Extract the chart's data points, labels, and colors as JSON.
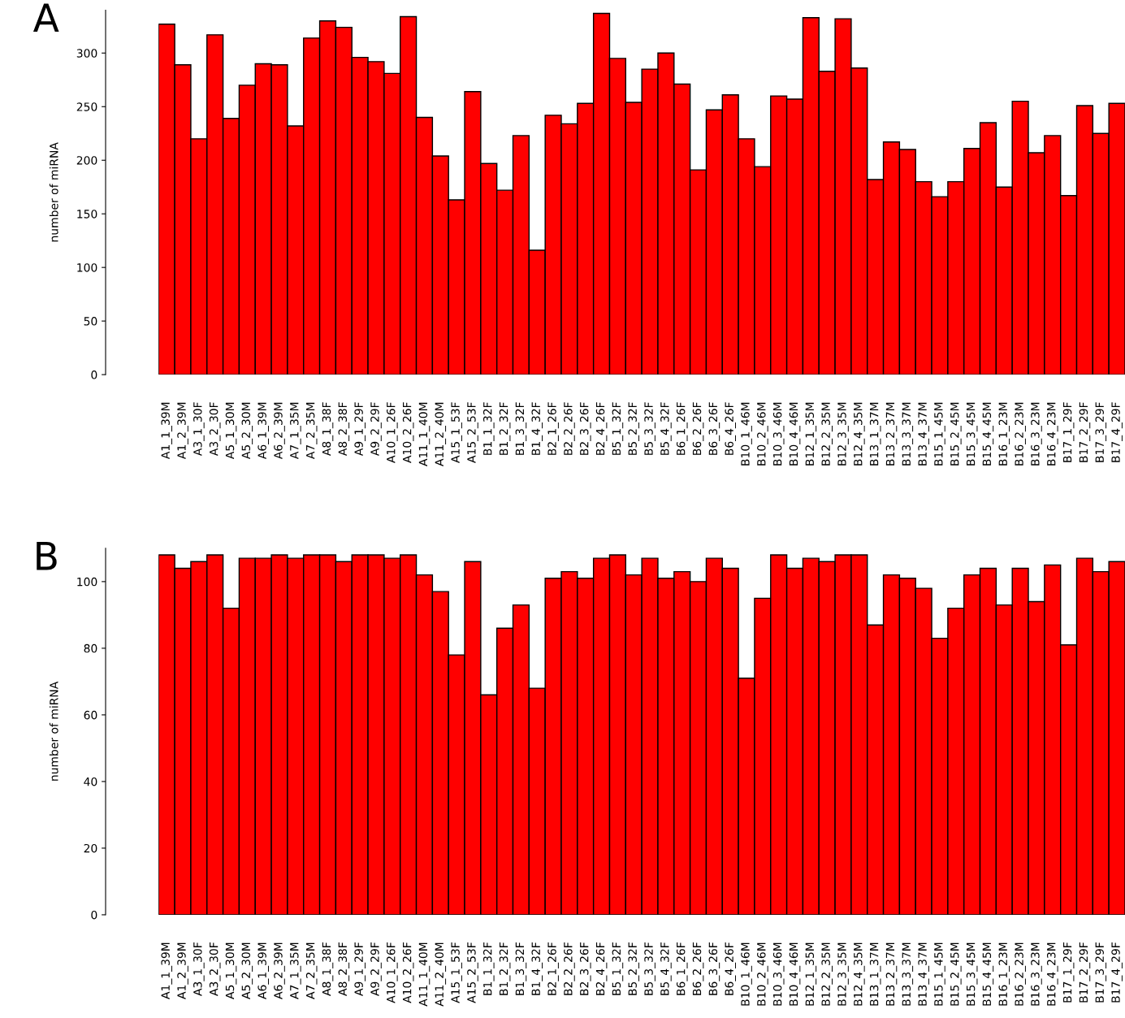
{
  "chart_data": [
    {
      "type": "bar",
      "title": "A",
      "ylabel": "number of miRNA",
      "categories": [
        "A1_1_39M",
        "A1_2_39M",
        "A3_1_30F",
        "A3_2_30F",
        "A5_1_30M",
        "A5_2_30M",
        "A6_1_39M",
        "A6_2_39M",
        "A7_1_35M",
        "A7_2_35M",
        "A8_1_38F",
        "A8_2_38F",
        "A9_1_29F",
        "A9_2_29F",
        "A10_1_26F",
        "A10_2_26F",
        "A11_1_40M",
        "A11_2_40M",
        "A15_1_53F",
        "A15_2_53F",
        "B1_1_32F",
        "B1_2_32F",
        "B1_3_32F",
        "B1_4_32F",
        "B2_1_26F",
        "B2_2_26F",
        "B2_3_26F",
        "B2_4_26F",
        "B5_1_32F",
        "B5_2_32F",
        "B5_3_32F",
        "B5_4_32F",
        "B6_1_26F",
        "B6_2_26F",
        "B6_3_26F",
        "B6_4_26F",
        "B10_1_46M",
        "B10_2_46M",
        "B10_3_46M",
        "B10_4_46M",
        "B12_1_35M",
        "B12_2_35M",
        "B12_3_35M",
        "B12_4_35M",
        "B13_1_37M",
        "B13_2_37M",
        "B13_3_37M",
        "B13_4_37M",
        "B15_1_45M",
        "B15_2_45M",
        "B15_3_45M",
        "B15_4_45M",
        "B16_1_23M",
        "B16_2_23M",
        "B16_3_23M",
        "B16_4_23M",
        "B17_1_29F",
        "B17_2_29F",
        "B17_3_29F",
        "B17_4_29F"
      ],
      "values": [
        327,
        289,
        220,
        317,
        239,
        270,
        290,
        289,
        232,
        314,
        330,
        324,
        296,
        292,
        281,
        334,
        240,
        204,
        163,
        264,
        197,
        172,
        223,
        116,
        242,
        234,
        253,
        337,
        295,
        254,
        285,
        300,
        271,
        191,
        247,
        261,
        220,
        194,
        260,
        257,
        333,
        283,
        332,
        286,
        182,
        217,
        210,
        180,
        166,
        180,
        211,
        235,
        175,
        255,
        207,
        223,
        167,
        251,
        225,
        253
      ],
      "color": "#ff0000",
      "ylim": [
        0,
        340
      ],
      "yticks": [
        0,
        50,
        100,
        150,
        200,
        250,
        300
      ],
      "grid": false,
      "legend": false
    },
    {
      "type": "bar",
      "title": "B",
      "ylabel": "number of miRNA",
      "categories": [
        "A1_1_39M",
        "A1_2_39M",
        "A3_1_30F",
        "A3_2_30F",
        "A5_1_30M",
        "A5_2_30M",
        "A6_1_39M",
        "A6_2_39M",
        "A7_1_35M",
        "A7_2_35M",
        "A8_1_38F",
        "A8_2_38F",
        "A9_1_29F",
        "A9_2_29F",
        "A10_1_26F",
        "A10_2_26F",
        "A11_1_40M",
        "A11_2_40M",
        "A15_1_53F",
        "A15_2_53F",
        "B1_1_32F",
        "B1_2_32F",
        "B1_3_32F",
        "B1_4_32F",
        "B2_1_26F",
        "B2_2_26F",
        "B2_3_26F",
        "B2_4_26F",
        "B5_1_32F",
        "B5_2_32F",
        "B5_3_32F",
        "B5_4_32F",
        "B6_1_26F",
        "B6_2_26F",
        "B6_3_26F",
        "B6_4_26F",
        "B10_1_46M",
        "B10_2_46M",
        "B10_3_46M",
        "B10_4_46M",
        "B12_1_35M",
        "B12_2_35M",
        "B12_3_35M",
        "B12_4_35M",
        "B13_1_37M",
        "B13_2_37M",
        "B13_3_37M",
        "B13_4_37M",
        "B15_1_45M",
        "B15_2_45M",
        "B15_3_45M",
        "B15_4_45M",
        "B16_1_23M",
        "B16_2_23M",
        "B16_3_23M",
        "B16_4_23M",
        "B17_1_29F",
        "B17_2_29F",
        "B17_3_29F",
        "B17_4_29F"
      ],
      "values": [
        108,
        104,
        106,
        108,
        92,
        107,
        107,
        108,
        107,
        108,
        108,
        106,
        108,
        108,
        107,
        108,
        102,
        97,
        78,
        106,
        66,
        86,
        93,
        68,
        101,
        103,
        101,
        107,
        108,
        102,
        107,
        101,
        103,
        100,
        107,
        104,
        71,
        95,
        108,
        104,
        107,
        106,
        108,
        108,
        87,
        102,
        101,
        98,
        83,
        92,
        102,
        104,
        93,
        104,
        94,
        105,
        81,
        107,
        103,
        106
      ],
      "color": "#ff0000",
      "ylim": [
        0,
        110
      ],
      "yticks": [
        0,
        20,
        40,
        60,
        80,
        100
      ],
      "grid": false,
      "legend": false
    }
  ]
}
